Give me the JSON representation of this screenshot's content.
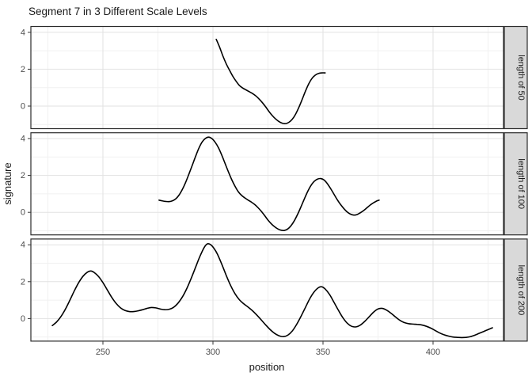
{
  "chart_data": {
    "type": "line",
    "title": "Segment 7 in 3 Different Scale Levels",
    "xlabel": "position",
    "ylabel": "signature",
    "x_domain": [
      217.3,
      432.4
    ],
    "y_domain": [
      -1.22,
      4.31
    ],
    "x_major_ticks": [
      250,
      300,
      350,
      400
    ],
    "x_minor_ticks": [
      225,
      275,
      325,
      375,
      425
    ],
    "y_major_ticks": [
      0,
      2,
      4
    ],
    "y_minor_ticks": [
      -1,
      1,
      3
    ],
    "legend": "none",
    "grid": "on",
    "line_color": "#000000",
    "facets": [
      {
        "label": "length of 50",
        "points": [
          [
            301.5,
            3.62
          ],
          [
            303,
            3.2
          ],
          [
            304.5,
            2.72
          ],
          [
            306,
            2.3
          ],
          [
            307.5,
            1.95
          ],
          [
            309,
            1.62
          ],
          [
            310.5,
            1.35
          ],
          [
            312,
            1.12
          ],
          [
            313.5,
            0.98
          ],
          [
            315,
            0.88
          ],
          [
            316.5,
            0.78
          ],
          [
            318,
            0.68
          ],
          [
            319.5,
            0.55
          ],
          [
            321,
            0.38
          ],
          [
            322.5,
            0.18
          ],
          [
            324,
            -0.05
          ],
          [
            325.5,
            -0.3
          ],
          [
            327,
            -0.52
          ],
          [
            328.5,
            -0.7
          ],
          [
            330,
            -0.84
          ],
          [
            331.5,
            -0.93
          ],
          [
            333,
            -0.95
          ],
          [
            334.5,
            -0.88
          ],
          [
            336,
            -0.72
          ],
          [
            337.5,
            -0.45
          ],
          [
            339,
            -0.08
          ],
          [
            340.5,
            0.35
          ],
          [
            342,
            0.8
          ],
          [
            343.5,
            1.2
          ],
          [
            345,
            1.5
          ],
          [
            346.5,
            1.68
          ],
          [
            348,
            1.77
          ],
          [
            349.5,
            1.8
          ],
          [
            351,
            1.8
          ]
        ]
      },
      {
        "label": "length of 100",
        "points": [
          [
            275.5,
            0.66
          ],
          [
            277,
            0.62
          ],
          [
            278.5,
            0.59
          ],
          [
            280,
            0.58
          ],
          [
            281.5,
            0.62
          ],
          [
            283,
            0.72
          ],
          [
            284.5,
            0.92
          ],
          [
            286,
            1.22
          ],
          [
            287.5,
            1.6
          ],
          [
            289,
            2.05
          ],
          [
            290.5,
            2.52
          ],
          [
            292,
            3.0
          ],
          [
            293.5,
            3.45
          ],
          [
            295,
            3.8
          ],
          [
            296.5,
            4.0
          ],
          [
            298,
            4.08
          ],
          [
            299.5,
            4.0
          ],
          [
            301,
            3.8
          ],
          [
            302.5,
            3.5
          ],
          [
            304,
            3.1
          ],
          [
            305.5,
            2.65
          ],
          [
            307,
            2.2
          ],
          [
            308.5,
            1.78
          ],
          [
            310,
            1.42
          ],
          [
            311.5,
            1.12
          ],
          [
            313,
            0.92
          ],
          [
            314.5,
            0.78
          ],
          [
            316,
            0.66
          ],
          [
            317.5,
            0.55
          ],
          [
            319,
            0.42
          ],
          [
            320.5,
            0.25
          ],
          [
            322,
            0.05
          ],
          [
            323.5,
            -0.18
          ],
          [
            325,
            -0.42
          ],
          [
            326.5,
            -0.62
          ],
          [
            328,
            -0.78
          ],
          [
            329.5,
            -0.9
          ],
          [
            331,
            -0.97
          ],
          [
            332.5,
            -0.98
          ],
          [
            334,
            -0.9
          ],
          [
            335.5,
            -0.72
          ],
          [
            337,
            -0.45
          ],
          [
            338.5,
            -0.1
          ],
          [
            340,
            0.3
          ],
          [
            341.5,
            0.72
          ],
          [
            343,
            1.12
          ],
          [
            344.5,
            1.45
          ],
          [
            346,
            1.68
          ],
          [
            347.5,
            1.8
          ],
          [
            349,
            1.83
          ],
          [
            350.5,
            1.75
          ],
          [
            352,
            1.55
          ],
          [
            353.5,
            1.28
          ],
          [
            355,
            0.98
          ],
          [
            356.5,
            0.68
          ],
          [
            358,
            0.42
          ],
          [
            359.5,
            0.2
          ],
          [
            361,
            0.02
          ],
          [
            362.5,
            -0.1
          ],
          [
            364,
            -0.15
          ],
          [
            365.5,
            -0.12
          ],
          [
            367,
            -0.02
          ],
          [
            368.5,
            0.1
          ],
          [
            370,
            0.25
          ],
          [
            371.5,
            0.4
          ],
          [
            373,
            0.52
          ],
          [
            374.5,
            0.62
          ],
          [
            375.5,
            0.66
          ]
        ]
      },
      {
        "label": "length of 200",
        "points": [
          [
            227,
            -0.38
          ],
          [
            229,
            -0.18
          ],
          [
            231,
            0.12
          ],
          [
            233,
            0.52
          ],
          [
            235,
            1.0
          ],
          [
            237,
            1.5
          ],
          [
            239,
            1.95
          ],
          [
            241,
            2.3
          ],
          [
            243,
            2.52
          ],
          [
            244.5,
            2.58
          ],
          [
            246,
            2.5
          ],
          [
            248,
            2.28
          ],
          [
            250,
            1.95
          ],
          [
            252,
            1.55
          ],
          [
            254,
            1.15
          ],
          [
            256,
            0.82
          ],
          [
            258,
            0.58
          ],
          [
            260,
            0.44
          ],
          [
            262,
            0.38
          ],
          [
            264,
            0.38
          ],
          [
            266,
            0.42
          ],
          [
            268,
            0.48
          ],
          [
            270,
            0.55
          ],
          [
            272,
            0.6
          ],
          [
            274,
            0.58
          ],
          [
            276,
            0.52
          ],
          [
            278,
            0.48
          ],
          [
            280,
            0.5
          ],
          [
            282,
            0.6
          ],
          [
            284,
            0.82
          ],
          [
            286,
            1.15
          ],
          [
            288,
            1.6
          ],
          [
            290,
            2.15
          ],
          [
            292,
            2.75
          ],
          [
            294,
            3.35
          ],
          [
            296,
            3.85
          ],
          [
            297.5,
            4.05
          ],
          [
            299,
            4.0
          ],
          [
            300.5,
            3.8
          ],
          [
            302,
            3.5
          ],
          [
            304,
            2.95
          ],
          [
            306,
            2.35
          ],
          [
            308,
            1.8
          ],
          [
            310,
            1.35
          ],
          [
            312,
            1.02
          ],
          [
            314,
            0.8
          ],
          [
            316,
            0.62
          ],
          [
            318,
            0.42
          ],
          [
            320,
            0.18
          ],
          [
            322,
            -0.08
          ],
          [
            324,
            -0.35
          ],
          [
            326,
            -0.6
          ],
          [
            328,
            -0.8
          ],
          [
            330,
            -0.93
          ],
          [
            332,
            -0.98
          ],
          [
            334,
            -0.9
          ],
          [
            336,
            -0.68
          ],
          [
            338,
            -0.32
          ],
          [
            340,
            0.12
          ],
          [
            342,
            0.6
          ],
          [
            344,
            1.08
          ],
          [
            346,
            1.45
          ],
          [
            348,
            1.68
          ],
          [
            349.5,
            1.72
          ],
          [
            351,
            1.6
          ],
          [
            353,
            1.3
          ],
          [
            355,
            0.88
          ],
          [
            357,
            0.45
          ],
          [
            359,
            0.05
          ],
          [
            361,
            -0.25
          ],
          [
            363,
            -0.42
          ],
          [
            365,
            -0.45
          ],
          [
            367,
            -0.35
          ],
          [
            369,
            -0.15
          ],
          [
            371,
            0.1
          ],
          [
            373,
            0.35
          ],
          [
            375,
            0.52
          ],
          [
            377,
            0.55
          ],
          [
            379,
            0.45
          ],
          [
            381,
            0.28
          ],
          [
            383,
            0.08
          ],
          [
            385,
            -0.1
          ],
          [
            387,
            -0.22
          ],
          [
            389,
            -0.28
          ],
          [
            391,
            -0.3
          ],
          [
            393,
            -0.32
          ],
          [
            395,
            -0.35
          ],
          [
            397,
            -0.42
          ],
          [
            399,
            -0.52
          ],
          [
            401,
            -0.65
          ],
          [
            403,
            -0.78
          ],
          [
            405,
            -0.88
          ],
          [
            407,
            -0.95
          ],
          [
            409,
            -1.0
          ],
          [
            411,
            -1.02
          ],
          [
            413,
            -1.03
          ],
          [
            415,
            -1.02
          ],
          [
            417,
            -0.98
          ],
          [
            419,
            -0.9
          ],
          [
            421,
            -0.8
          ],
          [
            423,
            -0.7
          ],
          [
            425,
            -0.6
          ],
          [
            427,
            -0.5
          ]
        ]
      }
    ],
    "colors": {
      "strip_bg": "#d9d9d9",
      "panel_bg": "#ffffff",
      "grid_major": "#e2e2e2",
      "grid_minor": "#f1f1f1",
      "panel_border": "#2b2b2b",
      "tick_mark": "#333333",
      "tick_label": "#4d4d4d",
      "text": "#1a1a1a"
    }
  }
}
